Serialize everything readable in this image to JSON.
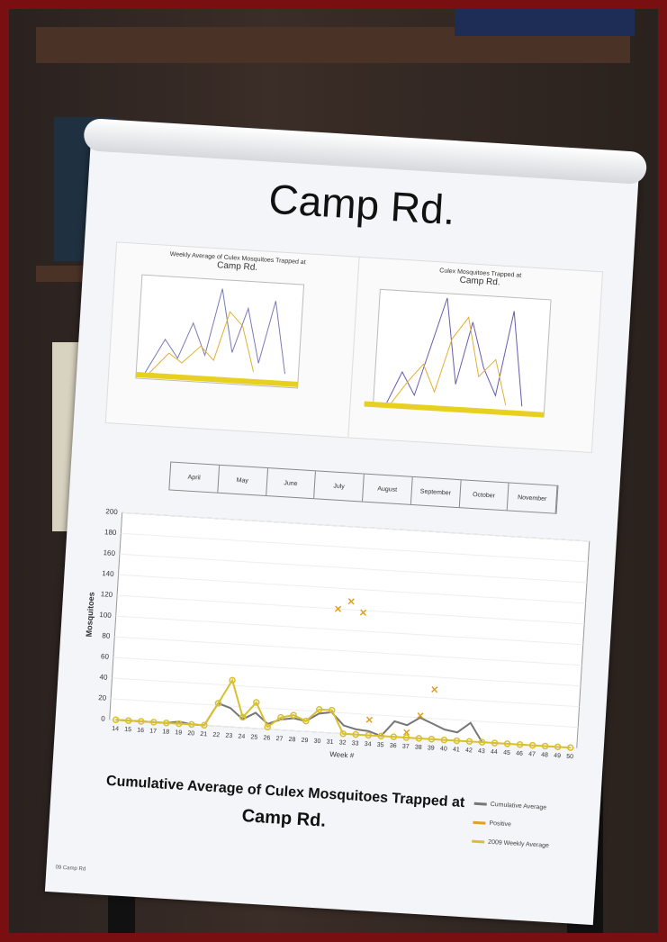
{
  "poster_title": "Camp Rd.",
  "small_charts": [
    {
      "title": "Weekly Average of Culex Mosquitoes Trapped at",
      "subtitle": "Camp Rd."
    },
    {
      "title": "Culex Mosquitoes Trapped at",
      "subtitle": "Camp Rd."
    }
  ],
  "month_labels": [
    "April",
    "May",
    "June",
    "July",
    "August",
    "September",
    "October",
    "November"
  ],
  "chart_data": {
    "type": "line",
    "title": "Cumulative Average of Culex Mosquitoes Trapped at",
    "subtitle": "Camp Rd.",
    "x_label": "Week #",
    "y_label": "Mosquitoes",
    "x": [
      14,
      15,
      16,
      17,
      18,
      19,
      20,
      21,
      22,
      23,
      24,
      25,
      26,
      27,
      28,
      29,
      30,
      31,
      32,
      33,
      34,
      35,
      36,
      37,
      38,
      39,
      40,
      41,
      42,
      43,
      44,
      45,
      46,
      47,
      48,
      49,
      50
    ],
    "xlim": [
      13.5,
      50.5
    ],
    "ylim": [
      0,
      200
    ],
    "yticks": [
      0,
      20,
      40,
      60,
      80,
      100,
      120,
      140,
      160,
      180,
      200
    ],
    "grid": true,
    "series": [
      {
        "name": "Cumulative Average",
        "color": "#777777",
        "line": true,
        "values": [
          0,
          0,
          0,
          0,
          0,
          2,
          0,
          0,
          22,
          18,
          8,
          15,
          5,
          10,
          12,
          10,
          18,
          20,
          8,
          5,
          4,
          0,
          15,
          12,
          20,
          15,
          10,
          8,
          18,
          0,
          null,
          null,
          null,
          null,
          null,
          null,
          null
        ]
      },
      {
        "name": "Positive",
        "color": "#e0a020",
        "line": false,
        "marker": "x",
        "values": [
          null,
          null,
          null,
          null,
          null,
          null,
          null,
          null,
          null,
          null,
          null,
          null,
          null,
          null,
          null,
          null,
          null,
          120,
          128,
          118,
          15,
          null,
          null,
          5,
          22,
          48,
          null,
          null,
          null,
          null,
          null,
          null,
          null,
          null,
          null,
          null,
          null
        ]
      },
      {
        "name": "2009 Weekly Average",
        "color": "#d8c030",
        "line": true,
        "marker": "circle",
        "values": [
          0,
          0,
          0,
          0,
          0,
          0,
          0,
          0,
          22,
          45,
          10,
          25,
          2,
          12,
          15,
          10,
          22,
          22,
          0,
          0,
          0,
          0,
          0,
          0,
          0,
          0,
          0,
          0,
          0,
          0,
          0,
          0,
          0,
          0,
          0,
          0,
          0
        ]
      }
    ]
  },
  "footer": "09 Camp Rd"
}
